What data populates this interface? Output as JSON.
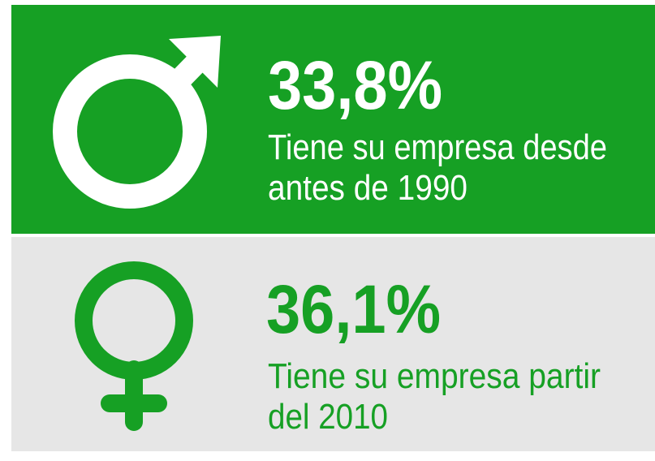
{
  "panels": [
    {
      "percent": "33,8%",
      "lines": [
        "Tiene su empresa desde",
        "antes de 1990"
      ]
    },
    {
      "percent": "36,1%",
      "lines": [
        "Tiene su empresa partir",
        "del 2010"
      ]
    }
  ]
}
